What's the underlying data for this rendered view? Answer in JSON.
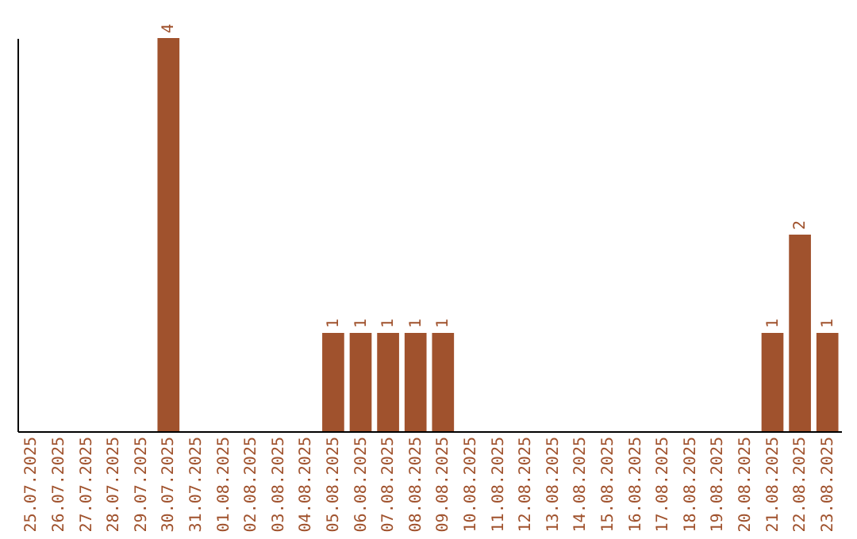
{
  "chart_data": {
    "type": "bar",
    "categories": [
      "25.07.2025",
      "26.07.2025",
      "27.07.2025",
      "28.07.2025",
      "29.07.2025",
      "30.07.2025",
      "31.07.2025",
      "01.08.2025",
      "02.08.2025",
      "03.08.2025",
      "04.08.2025",
      "05.08.2025",
      "06.08.2025",
      "07.08.2025",
      "08.08.2025",
      "09.08.2025",
      "10.08.2025",
      "11.08.2025",
      "12.08.2025",
      "13.08.2025",
      "14.08.2025",
      "15.08.2025",
      "16.08.2025",
      "17.08.2025",
      "18.08.2025",
      "19.08.2025",
      "20.08.2025",
      "21.08.2025",
      "22.08.2025",
      "23.08.2025"
    ],
    "values": [
      0,
      0,
      0,
      0,
      0,
      4,
      0,
      0,
      0,
      0,
      0,
      1,
      1,
      1,
      1,
      1,
      0,
      0,
      0,
      0,
      0,
      0,
      0,
      0,
      0,
      0,
      0,
      1,
      2,
      1
    ],
    "value_labels": [
      null,
      null,
      null,
      null,
      null,
      "4",
      null,
      null,
      null,
      null,
      null,
      "1",
      "1",
      "1",
      "1",
      "1",
      null,
      null,
      null,
      null,
      null,
      null,
      null,
      null,
      null,
      null,
      null,
      "1",
      "2",
      "1"
    ],
    "color": "#a0522d",
    "tick_labels": "x",
    "grid": false
  }
}
